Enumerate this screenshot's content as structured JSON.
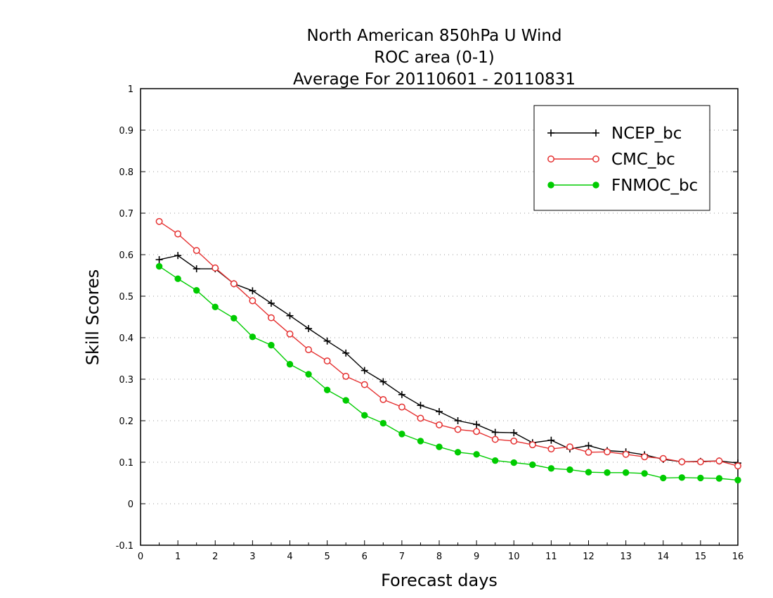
{
  "chart_data": {
    "type": "line",
    "title": [
      "North American 850hPa U Wind",
      "ROC area (0-1)",
      "Average For 20110601 - 20110831"
    ],
    "xlabel": "Forecast days",
    "ylabel": "Skill Scores",
    "xlim": [
      0,
      16
    ],
    "ylim": [
      -0.1,
      1
    ],
    "xticks": [
      "0",
      "1",
      "2",
      "3",
      "4",
      "5",
      "6",
      "7",
      "8",
      "9",
      "10",
      "11",
      "12",
      "13",
      "14",
      "15",
      "16"
    ],
    "yticks": [
      "-0.1",
      "0",
      "0.1",
      "0.2",
      "0.3",
      "0.4",
      "0.5",
      "0.6",
      "0.7",
      "0.8",
      "0.9",
      "1"
    ],
    "grid": true,
    "legend_position": "top-right",
    "x": [
      0.5,
      1,
      1.5,
      2,
      2.5,
      3,
      3.5,
      4,
      4.5,
      5,
      5.5,
      6,
      6.5,
      7,
      7.5,
      8,
      8.5,
      9,
      9.5,
      10,
      10.5,
      11,
      11.5,
      12,
      12.5,
      13,
      13.5,
      14,
      14.5,
      15,
      15.5,
      16
    ],
    "series": [
      {
        "name": "NCEP_bc",
        "color": "#000000",
        "marker": "plus",
        "values": [
          0.588,
          0.598,
          0.566,
          0.566,
          0.53,
          0.513,
          0.483,
          0.453,
          0.422,
          0.392,
          0.363,
          0.321,
          0.294,
          0.263,
          0.237,
          0.222,
          0.2,
          0.191,
          0.172,
          0.171,
          0.147,
          0.153,
          0.132,
          0.14,
          0.128,
          0.125,
          0.118,
          0.107,
          0.101,
          0.102,
          0.103,
          0.098
        ]
      },
      {
        "name": "CMC_bc",
        "color": "#e53030",
        "marker": "open-circle",
        "values": [
          0.68,
          0.65,
          0.61,
          0.568,
          0.53,
          0.489,
          0.448,
          0.409,
          0.371,
          0.344,
          0.307,
          0.287,
          0.251,
          0.233,
          0.206,
          0.19,
          0.179,
          0.174,
          0.155,
          0.151,
          0.142,
          0.132,
          0.137,
          0.124,
          0.125,
          0.119,
          0.113,
          0.109,
          0.101,
          0.101,
          0.103,
          0.091
        ]
      },
      {
        "name": "FNMOC_bc",
        "color": "#00cc00",
        "marker": "filled-circle",
        "values": [
          0.572,
          0.542,
          0.514,
          0.474,
          0.447,
          0.402,
          0.382,
          0.336,
          0.312,
          0.274,
          0.249,
          0.213,
          0.194,
          0.168,
          0.151,
          0.137,
          0.124,
          0.119,
          0.104,
          0.099,
          0.094,
          0.085,
          0.082,
          0.076,
          0.075,
          0.075,
          0.073,
          0.062,
          0.063,
          0.062,
          0.061,
          0.057
        ]
      }
    ]
  }
}
